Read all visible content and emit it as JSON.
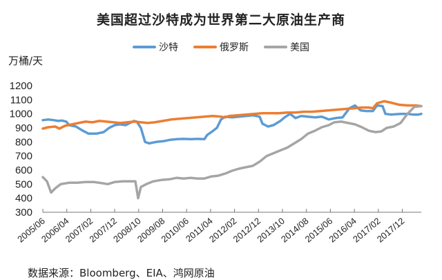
{
  "chart_data": {
    "type": "line",
    "title": "美国超过沙特成为世界第二大原油生产商",
    "ylabel": "万桶/天",
    "xlabel": "",
    "ylim": [
      300,
      1200
    ],
    "yticks": [
      1200,
      1100,
      1000,
      900,
      800,
      700,
      600,
      500,
      400,
      300
    ],
    "categories": [
      "2005/06",
      "2006/04",
      "2007/02",
      "2007/12",
      "2008/10",
      "2009/08",
      "2010/06",
      "2011/04",
      "2012/02",
      "2012/12",
      "2013/10",
      "2014/08",
      "2015/06",
      "2016/04",
      "2017/02",
      "2017/12"
    ],
    "grid": false,
    "legend_position": "top",
    "source": "数据来源：Bloomberg、EIA、鸿网原油",
    "series": [
      {
        "name": "沙特",
        "color": "#5B9BD5",
        "points": [
          [
            62,
            955
          ],
          [
            70,
            960
          ],
          [
            78,
            955
          ],
          [
            84,
            950
          ],
          [
            90,
            952
          ],
          [
            96,
            945
          ],
          [
            100,
            920
          ],
          [
            110,
            910
          ],
          [
            120,
            880
          ],
          [
            128,
            860
          ],
          [
            140,
            860
          ],
          [
            150,
            870
          ],
          [
            158,
            900
          ],
          [
            166,
            920
          ],
          [
            174,
            925
          ],
          [
            182,
            920
          ],
          [
            190,
            940
          ],
          [
            194,
            950
          ],
          [
            198,
            945
          ],
          [
            204,
            900
          ],
          [
            210,
            800
          ],
          [
            216,
            790
          ],
          [
            226,
            800
          ],
          [
            236,
            805
          ],
          [
            246,
            815
          ],
          [
            256,
            820
          ],
          [
            266,
            822
          ],
          [
            276,
            820
          ],
          [
            286,
            822
          ],
          [
            296,
            820
          ],
          [
            300,
            850
          ],
          [
            306,
            870
          ],
          [
            314,
            900
          ],
          [
            320,
            960
          ],
          [
            326,
            980
          ],
          [
            336,
            975
          ],
          [
            346,
            980
          ],
          [
            356,
            985
          ],
          [
            366,
            990
          ],
          [
            376,
            980
          ],
          [
            380,
            930
          ],
          [
            388,
            910
          ],
          [
            396,
            920
          ],
          [
            406,
            950
          ],
          [
            412,
            975
          ],
          [
            420,
            1000
          ],
          [
            428,
            970
          ],
          [
            436,
            985
          ],
          [
            446,
            980
          ],
          [
            456,
            975
          ],
          [
            466,
            980
          ],
          [
            476,
            960
          ],
          [
            486,
            970
          ],
          [
            496,
            975
          ],
          [
            506,
            1040
          ],
          [
            514,
            1060
          ],
          [
            522,
            1025
          ],
          [
            530,
            1020
          ],
          [
            540,
            1020
          ],
          [
            546,
            1060
          ],
          [
            554,
            1055
          ],
          [
            558,
            1000
          ],
          [
            566,
            995
          ],
          [
            580,
            1000
          ],
          [
            590,
            1000
          ],
          [
            598,
            995
          ],
          [
            606,
            995
          ],
          [
            610,
            1000
          ]
        ]
      },
      {
        "name": "俄罗斯",
        "color": "#ED7D31",
        "points": [
          [
            62,
            895
          ],
          [
            70,
            905
          ],
          [
            80,
            910
          ],
          [
            86,
            895
          ],
          [
            94,
            915
          ],
          [
            104,
            925
          ],
          [
            114,
            935
          ],
          [
            124,
            945
          ],
          [
            134,
            940
          ],
          [
            144,
            950
          ],
          [
            154,
            945
          ],
          [
            164,
            940
          ],
          [
            174,
            935
          ],
          [
            184,
            940
          ],
          [
            194,
            945
          ],
          [
            204,
            940
          ],
          [
            214,
            935
          ],
          [
            224,
            940
          ],
          [
            236,
            950
          ],
          [
            248,
            960
          ],
          [
            260,
            965
          ],
          [
            272,
            970
          ],
          [
            284,
            975
          ],
          [
            296,
            980
          ],
          [
            308,
            985
          ],
          [
            320,
            980
          ],
          [
            326,
            975
          ],
          [
            332,
            985
          ],
          [
            344,
            990
          ],
          [
            356,
            995
          ],
          [
            368,
            1000
          ],
          [
            380,
            1005
          ],
          [
            392,
            1005
          ],
          [
            404,
            1005
          ],
          [
            416,
            1010
          ],
          [
            428,
            1010
          ],
          [
            440,
            1015
          ],
          [
            452,
            1015
          ],
          [
            464,
            1020
          ],
          [
            476,
            1025
          ],
          [
            488,
            1030
          ],
          [
            500,
            1035
          ],
          [
            512,
            1040
          ],
          [
            524,
            1045
          ],
          [
            534,
            1045
          ],
          [
            540,
            1040
          ],
          [
            546,
            1075
          ],
          [
            556,
            1090
          ],
          [
            566,
            1080
          ],
          [
            578,
            1065
          ],
          [
            590,
            1060
          ],
          [
            602,
            1060
          ],
          [
            610,
            1055
          ]
        ]
      },
      {
        "name": "美国",
        "color": "#A5A5A5",
        "points": [
          [
            62,
            550
          ],
          [
            68,
            520
          ],
          [
            74,
            440
          ],
          [
            80,
            470
          ],
          [
            88,
            500
          ],
          [
            100,
            510
          ],
          [
            112,
            510
          ],
          [
            124,
            515
          ],
          [
            136,
            515
          ],
          [
            146,
            508
          ],
          [
            156,
            500
          ],
          [
            166,
            515
          ],
          [
            178,
            520
          ],
          [
            190,
            520
          ],
          [
            196,
            520
          ],
          [
            200,
            400
          ],
          [
            204,
            480
          ],
          [
            212,
            500
          ],
          [
            222,
            520
          ],
          [
            234,
            530
          ],
          [
            246,
            535
          ],
          [
            256,
            545
          ],
          [
            266,
            540
          ],
          [
            276,
            545
          ],
          [
            286,
            540
          ],
          [
            296,
            540
          ],
          [
            306,
            555
          ],
          [
            316,
            560
          ],
          [
            326,
            575
          ],
          [
            336,
            595
          ],
          [
            346,
            610
          ],
          [
            356,
            620
          ],
          [
            366,
            630
          ],
          [
            376,
            660
          ],
          [
            386,
            700
          ],
          [
            396,
            720
          ],
          [
            406,
            740
          ],
          [
            416,
            760
          ],
          [
            426,
            790
          ],
          [
            436,
            820
          ],
          [
            446,
            860
          ],
          [
            456,
            880
          ],
          [
            466,
            905
          ],
          [
            476,
            920
          ],
          [
            484,
            940
          ],
          [
            494,
            945
          ],
          [
            504,
            935
          ],
          [
            514,
            925
          ],
          [
            524,
            905
          ],
          [
            534,
            880
          ],
          [
            544,
            870
          ],
          [
            552,
            875
          ],
          [
            560,
            900
          ],
          [
            570,
            910
          ],
          [
            580,
            935
          ],
          [
            590,
            1000
          ],
          [
            600,
            1050
          ],
          [
            610,
            1055
          ]
        ]
      }
    ]
  },
  "header": {
    "title": "美国超过沙特成为世界第二大原油生产商"
  },
  "legend": {
    "items": [
      {
        "label": "沙特"
      },
      {
        "label": "俄罗斯"
      },
      {
        "label": "美国"
      }
    ]
  },
  "axis": {
    "unit": "万桶/天"
  },
  "footer": {
    "source": "数据来源：Bloomberg、EIA、鸿网原油"
  }
}
